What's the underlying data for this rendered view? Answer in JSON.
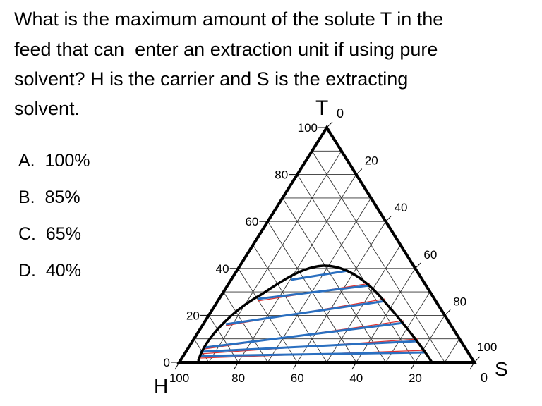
{
  "question_lines": [
    "What is the maximum amount of the solute T in the",
    "feed that can  enter an extraction unit if using pure",
    "solvent? H is the carrier and S is the extracting",
    "solvent."
  ],
  "options": [
    {
      "letter": "A.",
      "text": "100%"
    },
    {
      "letter": "B.",
      "text": "85%"
    },
    {
      "letter": "C.",
      "text": "65%"
    },
    {
      "letter": "D.",
      "text": "40%"
    }
  ],
  "diagram": {
    "vertices": {
      "top": "T",
      "left": "H",
      "right": "S"
    },
    "left_axis_ticks": [
      0,
      20,
      40,
      60,
      80,
      100
    ],
    "right_axis_ticks": [
      0,
      20,
      40,
      60,
      80,
      100
    ],
    "bottom_axis_ticks": [
      100,
      80,
      60,
      40,
      20,
      0
    ]
  }
}
